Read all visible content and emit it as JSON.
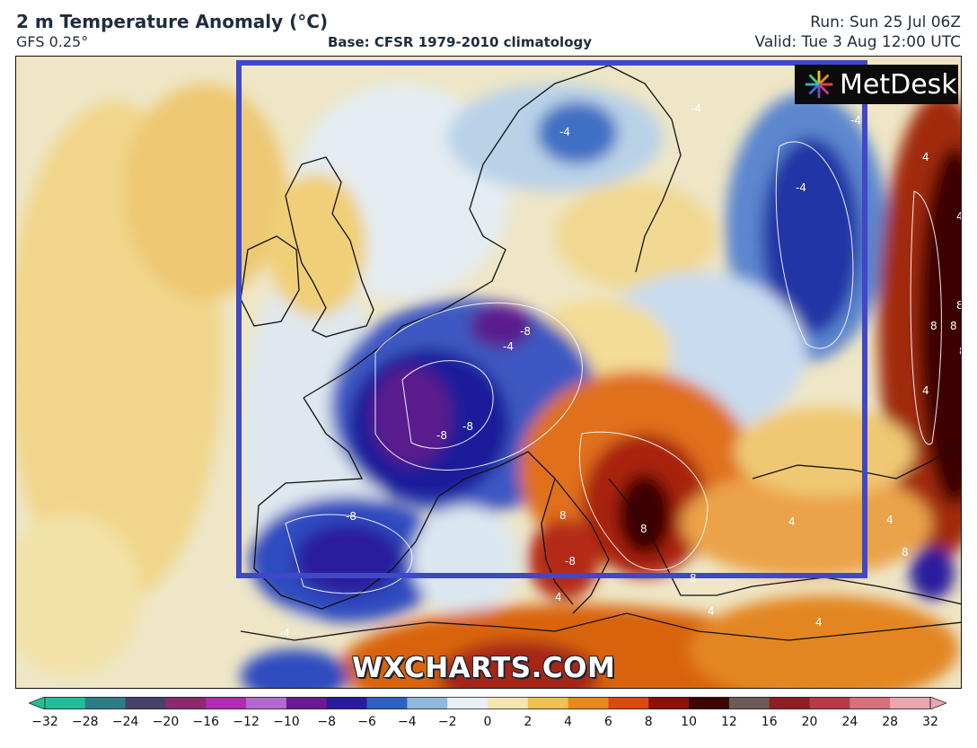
{
  "header": {
    "title": "2 m Temperature Anomaly (°C)",
    "model": "GFS 0.25°",
    "base": "Base: CFSR 1979-2010 climatology",
    "run": "Run: Sun 25 Jul 06Z",
    "valid": "Valid: Tue 3 Aug 12:00 UTC"
  },
  "logo": {
    "text": "MetDesk",
    "icon": "pinwheel-icon"
  },
  "watermark": "WXCHARTS.COM",
  "highlight_box_color": "#4048c8",
  "contour_labels": [
    {
      "text": "-4"
    },
    {
      "text": "-4"
    },
    {
      "text": "-4"
    },
    {
      "text": "-4"
    },
    {
      "text": "-8"
    },
    {
      "text": "-4"
    },
    {
      "text": "-8"
    },
    {
      "text": "-8"
    },
    {
      "text": "-8"
    },
    {
      "text": "-8"
    },
    {
      "text": "-4"
    },
    {
      "text": "4"
    },
    {
      "text": "4"
    },
    {
      "text": "8"
    },
    {
      "text": "8"
    },
    {
      "text": "8"
    },
    {
      "text": "8"
    },
    {
      "text": "4"
    },
    {
      "text": "4"
    },
    {
      "text": "8"
    },
    {
      "text": "4"
    },
    {
      "text": "8"
    },
    {
      "text": "8"
    },
    {
      "text": "8"
    },
    {
      "text": "4"
    },
    {
      "text": "4"
    },
    {
      "text": "4"
    }
  ],
  "colorbar": {
    "ticks": [
      "−32",
      "−28",
      "−24",
      "−20",
      "−16",
      "−12",
      "−10",
      "−8",
      "−6",
      "−4",
      "−2",
      "0",
      "2",
      "4",
      "6",
      "8",
      "10",
      "12",
      "16",
      "20",
      "24",
      "28",
      "32"
    ],
    "colors": [
      "#1fbf9a",
      "#2c7d86",
      "#46406e",
      "#8b2a6c",
      "#b12cb0",
      "#b36ad0",
      "#6b1a94",
      "#2a1a9c",
      "#2e62c2",
      "#8fb8dc",
      "#e8f0f6",
      "#f3e6b0",
      "#efc052",
      "#e78a1e",
      "#d94a10",
      "#8a1208",
      "#3d0604",
      "#6c5b56",
      "#8f1e22",
      "#b63a48",
      "#d7707a",
      "#eba7b0"
    ]
  }
}
